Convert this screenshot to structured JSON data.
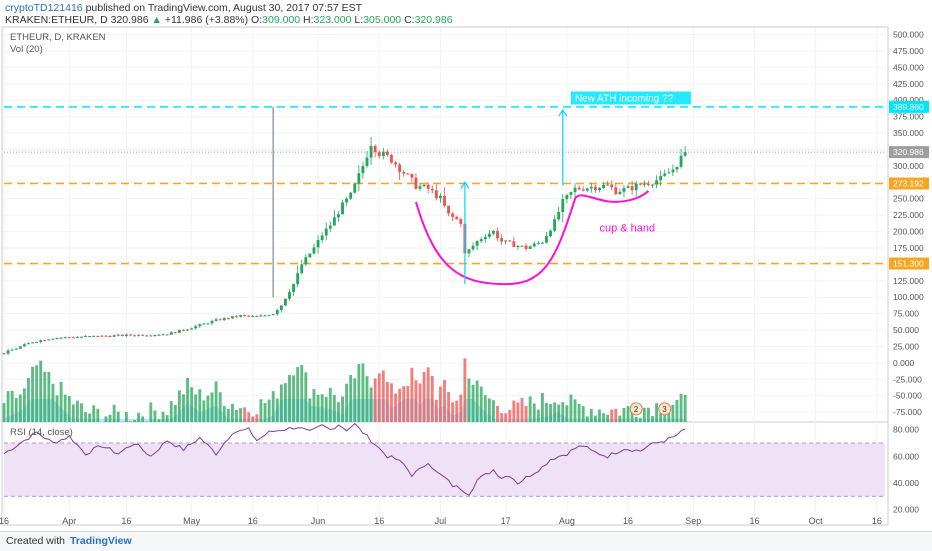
{
  "header": {
    "user": "cryptoTD121416",
    "published_text": "published on TradingView.com, August 30, 2017 07:57 EST",
    "symbol_line": "KRAKEN:ETHEUR, D",
    "last": "320.986",
    "change": "+11.986 (+3.88%)",
    "open_label": "O:",
    "open": "309.000",
    "high_label": "H:",
    "high": "323.000",
    "low_label": "L:",
    "low": "305.000",
    "close_label": "C:",
    "close": "320.986"
  },
  "legend": {
    "symbol": "ETHEUR, D, KRAKEN",
    "vol": "Vol (20)",
    "rsi": "RSI (14, close)"
  },
  "footer": {
    "created": "Created with",
    "brand": "TradingView"
  },
  "colors": {
    "up": "#26a65b",
    "down": "#ef5350",
    "ma": "#aee0f5",
    "orange_line": "#f5a623",
    "cyan_line": "#00e5ff",
    "cup": "#ff0fd5",
    "arrow": "#00d5ff",
    "rsi_line": "#7a3e9d",
    "rsi_band": "#efe2f7"
  },
  "chart_data": {
    "type": "candlestick",
    "price_axis": {
      "ylim": [
        -90,
        510
      ],
      "ticks": [
        "500.000",
        "475.000",
        "450.000",
        "425.000",
        "400.000",
        "375.000",
        "350.000",
        "325.000",
        "300.000",
        "275.000",
        "250.000",
        "225.000",
        "200.000",
        "175.000",
        "150.000",
        "125.000",
        "100.000",
        "75.000",
        "50.000",
        "25.000",
        "0.000",
        "-25.000",
        "-50.000",
        "-75.000"
      ],
      "tick_values": [
        500,
        475,
        450,
        425,
        400,
        375,
        350,
        325,
        300,
        275,
        250,
        225,
        200,
        175,
        150,
        125,
        100,
        75,
        50,
        25,
        0,
        -25,
        -50,
        -75
      ]
    },
    "rsi_axis": {
      "ylim": [
        10,
        85
      ],
      "ticks": [
        "80.000",
        "60.000",
        "40.000",
        "20.000"
      ],
      "tick_values": [
        80,
        60,
        40,
        20
      ],
      "band": [
        30,
        70
      ]
    },
    "x_axis": {
      "labels": [
        "16",
        "Apr",
        "16",
        "May",
        "16",
        "Jun",
        "16",
        "Jul",
        "17",
        "Aug",
        "16",
        "Sep",
        "16",
        "Oct",
        "16"
      ],
      "label_days": [
        0,
        16,
        30,
        46,
        61,
        77,
        92,
        107,
        123,
        138,
        153,
        169,
        184,
        199,
        214
      ],
      "total_days": 216,
      "last_day": 167
    },
    "price_labels": [
      {
        "text": "389.860",
        "value": 389.86,
        "color": "#00e5ff"
      },
      {
        "text": "320.986",
        "value": 320.986,
        "color": "#9e9e9e"
      },
      {
        "text": "273.192",
        "value": 273.192,
        "color": "#f5a623"
      },
      {
        "text": "151.300",
        "value": 151.3,
        "color": "#f5a623"
      }
    ],
    "horizontal_lines": [
      {
        "value": 389.86,
        "style": "cyan"
      },
      {
        "value": 273.192,
        "style": "orange"
      },
      {
        "value": 151.3,
        "style": "orange"
      },
      {
        "value": 320.986,
        "style": "grey"
      }
    ],
    "annotations": {
      "ath_text": "New ATH incoming ??",
      "cup_text": "cup & hand",
      "badge_2": "2",
      "badge_3": "3"
    },
    "close_keypoints": [
      [
        0,
        15
      ],
      [
        7,
        32
      ],
      [
        12,
        38
      ],
      [
        20,
        40
      ],
      [
        30,
        42
      ],
      [
        40,
        44
      ],
      [
        45,
        52
      ],
      [
        52,
        65
      ],
      [
        58,
        72
      ],
      [
        62,
        70
      ],
      [
        66,
        75
      ],
      [
        68,
        88
      ],
      [
        71,
        120
      ],
      [
        73,
        150
      ],
      [
        76,
        175
      ],
      [
        78,
        195
      ],
      [
        80,
        210
      ],
      [
        83,
        240
      ],
      [
        85,
        255
      ],
      [
        88,
        300
      ],
      [
        90,
        335
      ],
      [
        92,
        320
      ],
      [
        95,
        310
      ],
      [
        98,
        290
      ],
      [
        101,
        270
      ],
      [
        104,
        265
      ],
      [
        107,
        250
      ],
      [
        109,
        225
      ],
      [
        112,
        215
      ],
      [
        113,
        165
      ],
      [
        116,
        185
      ],
      [
        118,
        195
      ],
      [
        120,
        200
      ],
      [
        122,
        185
      ],
      [
        125,
        180
      ],
      [
        128,
        175
      ],
      [
        132,
        185
      ],
      [
        135,
        215
      ],
      [
        137,
        245
      ],
      [
        140,
        265
      ],
      [
        144,
        268
      ],
      [
        148,
        270
      ],
      [
        150,
        262
      ],
      [
        153,
        265
      ],
      [
        156,
        272
      ],
      [
        158,
        275
      ],
      [
        161,
        280
      ],
      [
        164,
        295
      ],
      [
        167,
        320.986
      ]
    ],
    "rsi_keypoints": [
      [
        0,
        62
      ],
      [
        5,
        72
      ],
      [
        8,
        78
      ],
      [
        12,
        70
      ],
      [
        16,
        75
      ],
      [
        20,
        62
      ],
      [
        24,
        68
      ],
      [
        28,
        62
      ],
      [
        32,
        70
      ],
      [
        36,
        60
      ],
      [
        40,
        72
      ],
      [
        44,
        65
      ],
      [
        48,
        74
      ],
      [
        52,
        62
      ],
      [
        56,
        78
      ],
      [
        60,
        80
      ],
      [
        62,
        72
      ],
      [
        65,
        78
      ],
      [
        68,
        80
      ],
      [
        72,
        82
      ],
      [
        75,
        78
      ],
      [
        78,
        83
      ],
      [
        80,
        80
      ],
      [
        82,
        84
      ],
      [
        84,
        80
      ],
      [
        86,
        84
      ],
      [
        88,
        78
      ],
      [
        90,
        72
      ],
      [
        92,
        66
      ],
      [
        94,
        60
      ],
      [
        96,
        58
      ],
      [
        98,
        54
      ],
      [
        100,
        46
      ],
      [
        102,
        50
      ],
      [
        104,
        56
      ],
      [
        106,
        48
      ],
      [
        108,
        44
      ],
      [
        110,
        38
      ],
      [
        112,
        36
      ],
      [
        114,
        32
      ],
      [
        116,
        42
      ],
      [
        118,
        46
      ],
      [
        120,
        50
      ],
      [
        122,
        44
      ],
      [
        124,
        46
      ],
      [
        126,
        40
      ],
      [
        128,
        44
      ],
      [
        130,
        48
      ],
      [
        132,
        52
      ],
      [
        134,
        58
      ],
      [
        136,
        60
      ],
      [
        138,
        62
      ],
      [
        140,
        66
      ],
      [
        142,
        68
      ],
      [
        144,
        64
      ],
      [
        146,
        62
      ],
      [
        148,
        60
      ],
      [
        150,
        63
      ],
      [
        152,
        66
      ],
      [
        154,
        65
      ],
      [
        156,
        64
      ],
      [
        158,
        68
      ],
      [
        160,
        70
      ],
      [
        162,
        72
      ],
      [
        164,
        74
      ],
      [
        167,
        80
      ]
    ],
    "volume_keypoints": [
      [
        0,
        -60
      ],
      [
        5,
        -45
      ],
      [
        8,
        -5
      ],
      [
        12,
        -30
      ],
      [
        15,
        -50
      ],
      [
        20,
        -75
      ],
      [
        30,
        -80
      ],
      [
        40,
        -70
      ],
      [
        45,
        -35
      ],
      [
        48,
        -50
      ],
      [
        52,
        -40
      ],
      [
        55,
        -60
      ],
      [
        60,
        -70
      ],
      [
        66,
        -55
      ],
      [
        68,
        -30
      ],
      [
        70,
        -15
      ],
      [
        72,
        5
      ],
      [
        75,
        -40
      ],
      [
        80,
        -45
      ],
      [
        83,
        -55
      ],
      [
        86,
        -20
      ],
      [
        88,
        -10
      ],
      [
        90,
        -25
      ],
      [
        92,
        -5
      ],
      [
        95,
        -45
      ],
      [
        98,
        -30
      ],
      [
        100,
        -20
      ],
      [
        102,
        -40
      ],
      [
        104,
        0
      ],
      [
        106,
        -45
      ],
      [
        108,
        -40
      ],
      [
        110,
        -55
      ],
      [
        112,
        -50
      ],
      [
        113,
        5
      ],
      [
        115,
        -30
      ],
      [
        118,
        -50
      ],
      [
        120,
        -60
      ],
      [
        125,
        -70
      ],
      [
        130,
        -60
      ],
      [
        134,
        -55
      ],
      [
        136,
        -50
      ],
      [
        138,
        -60
      ],
      [
        140,
        -65
      ],
      [
        145,
        -70
      ],
      [
        150,
        -72
      ],
      [
        155,
        -70
      ],
      [
        160,
        -65
      ],
      [
        167,
        -60
      ]
    ]
  }
}
